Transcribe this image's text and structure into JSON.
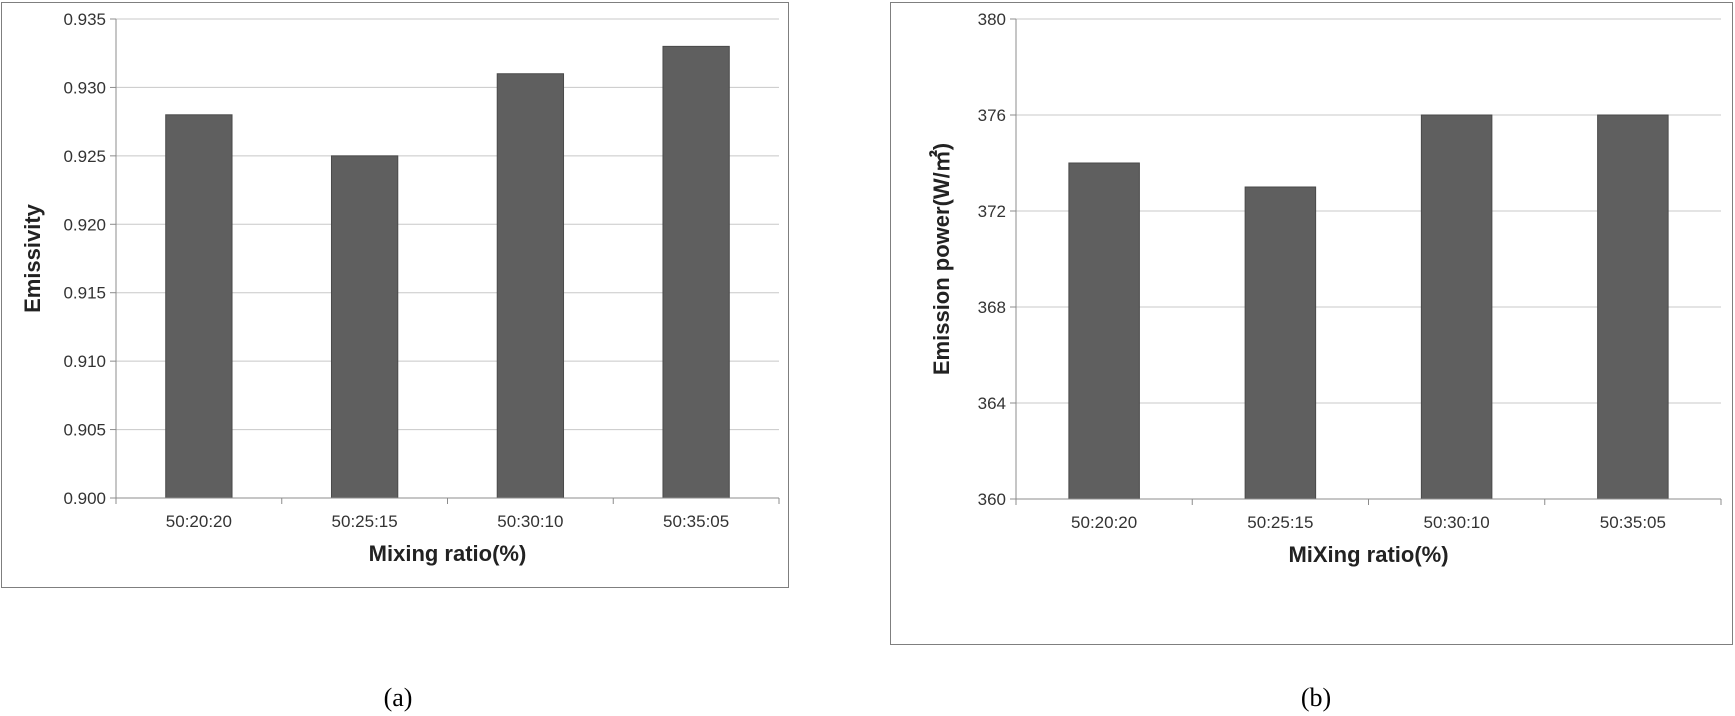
{
  "chart_data": [
    {
      "type": "bar",
      "categories": [
        "50:20:20",
        "50:25:15",
        "50:30:10",
        "50:35:05"
      ],
      "values": [
        0.928,
        0.925,
        0.931,
        0.933
      ],
      "title": "",
      "xlabel": "Mixing ratio(%)",
      "ylabel": "Emissivity",
      "ylim": [
        0.9,
        0.935
      ],
      "yticks": [
        "0.900",
        "0.905",
        "0.910",
        "0.915",
        "0.920",
        "0.925",
        "0.930",
        "0.935"
      ],
      "grid": true,
      "bar_color": "#5f5f5f",
      "caption": "(a)"
    },
    {
      "type": "bar",
      "categories": [
        "50:20:20",
        "50:25:15",
        "50:30:10",
        "50:35:05"
      ],
      "values": [
        374,
        373,
        376,
        376
      ],
      "title": "",
      "xlabel": "MiXing ratio(%)",
      "ylabel": "Emission power(W/㎡)",
      "ylim": [
        360,
        380
      ],
      "yticks": [
        "360",
        "364",
        "368",
        "372",
        "376",
        "380"
      ],
      "grid": true,
      "bar_color": "#5f5f5f",
      "caption": "(b)"
    }
  ]
}
